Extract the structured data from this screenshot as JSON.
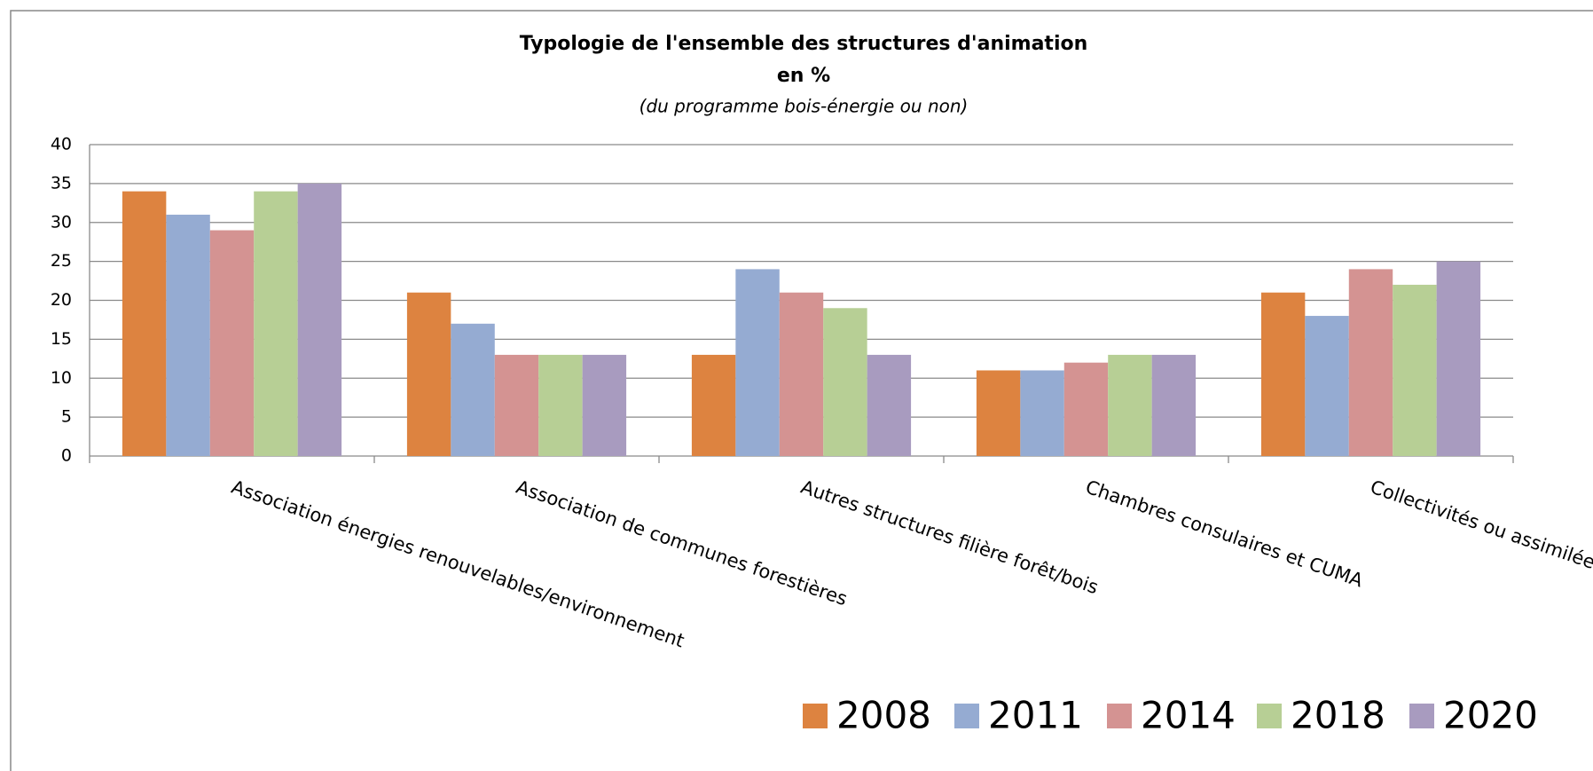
{
  "chart_data": {
    "type": "bar",
    "title": "Typologie de l'ensemble des structures d'animation",
    "subtitle": "en %",
    "note": "(du programme  bois-énergie ou non)",
    "categories": [
      "Association énergies renouvelables/environnement",
      "Association de communes forestières",
      "Autres structures filière forêt/bois",
      "Chambres consulaires et CUMA",
      "Collectivités ou assimilées"
    ],
    "series": [
      {
        "name": "2008",
        "color": "#dd8340",
        "values": [
          34,
          21,
          13,
          11,
          21
        ]
      },
      {
        "name": "2011",
        "color": "#95abd2",
        "values": [
          31,
          17,
          24,
          11,
          18
        ]
      },
      {
        "name": "2014",
        "color": "#d49392",
        "values": [
          29,
          13,
          21,
          12,
          24
        ]
      },
      {
        "name": "2018",
        "color": "#b7cf95",
        "values": [
          34,
          13,
          19,
          13,
          22
        ]
      },
      {
        "name": "2020",
        "color": "#a89bbf",
        "values": [
          35,
          13,
          13,
          13,
          25
        ]
      }
    ],
    "ylim": [
      0,
      40
    ],
    "yticks": [
      0,
      5,
      10,
      15,
      20,
      25,
      30,
      35,
      40
    ],
    "grid": true,
    "legend": "bottom-right"
  }
}
